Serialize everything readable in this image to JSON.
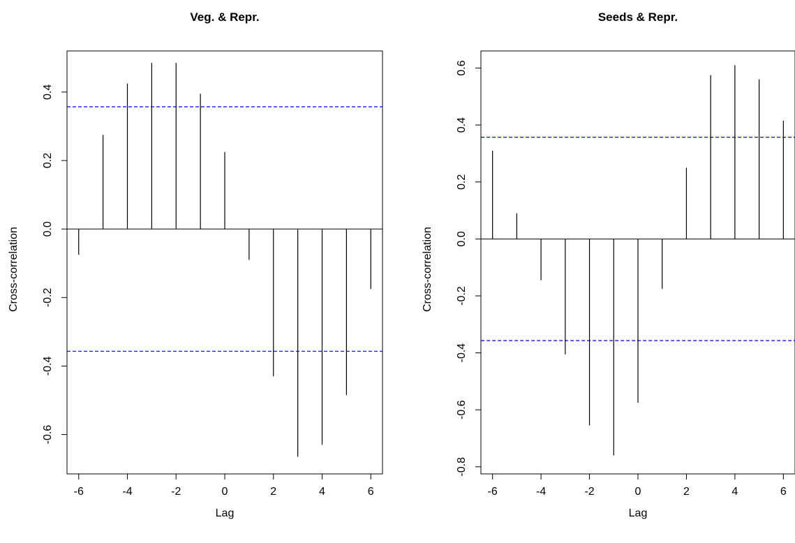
{
  "chart_data": [
    {
      "type": "bar",
      "subtype": "cross-correlation",
      "title": "Veg.  & Repr.",
      "xlabel": "Lag",
      "ylabel": "Cross-correlation",
      "xlim": [
        -6.48,
        6.48
      ],
      "ylim": [
        -0.715,
        0.52
      ],
      "x_ticks": [
        -6,
        -4,
        -2,
        0,
        2,
        4,
        6
      ],
      "y_ticks": [
        -0.6,
        -0.4,
        -0.2,
        0.0,
        0.2,
        0.4
      ],
      "y_tick_labels": [
        "-0.6",
        "-0.4",
        "-0.2",
        "0.0",
        "0.2",
        "0.4"
      ],
      "lags": [
        -6,
        -5,
        -4,
        -3,
        -2,
        -1,
        0,
        1,
        2,
        3,
        4,
        5,
        6
      ],
      "values": [
        -0.075,
        0.275,
        0.425,
        0.485,
        0.485,
        0.395,
        0.225,
        -0.09,
        -0.43,
        -0.665,
        -0.63,
        -0.485,
        -0.175
      ],
      "confidence_limit": 0.357,
      "zero_line": true,
      "grid": false,
      "colors": {
        "bars": "#000000",
        "confidence": "#0000ff"
      }
    },
    {
      "type": "bar",
      "subtype": "cross-correlation",
      "title": "Seeds  & Repr.",
      "xlabel": "Lag",
      "ylabel": "Cross-correlation",
      "xlim": [
        -6.48,
        6.48
      ],
      "ylim": [
        -0.825,
        0.66
      ],
      "x_ticks": [
        -6,
        -4,
        -2,
        0,
        2,
        4,
        6
      ],
      "y_ticks": [
        -0.8,
        -0.6,
        -0.4,
        -0.2,
        0.0,
        0.2,
        0.4,
        0.6
      ],
      "y_tick_labels": [
        "-0.8",
        "-0.6",
        "-0.4",
        "-0.2",
        "0.0",
        "0.2",
        "0.4",
        "0.6"
      ],
      "lags": [
        -6,
        -5,
        -4,
        -3,
        -2,
        -1,
        0,
        1,
        2,
        3,
        4,
        5,
        6
      ],
      "values": [
        0.31,
        0.09,
        -0.145,
        -0.405,
        -0.655,
        -0.76,
        -0.575,
        -0.175,
        0.25,
        0.575,
        0.61,
        0.56,
        0.415
      ],
      "confidence_limit": 0.357,
      "zero_line": true,
      "grid": false,
      "colors": {
        "bars": "#000000",
        "confidence": "#0000ff"
      }
    }
  ]
}
